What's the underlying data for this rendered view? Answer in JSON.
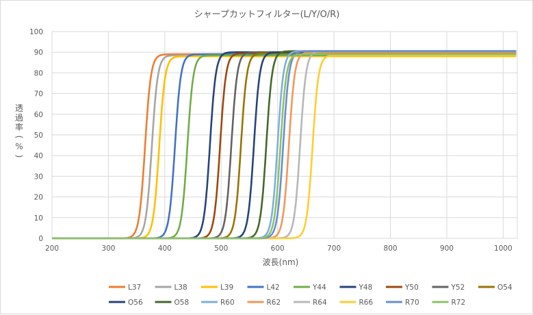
{
  "chart_data": {
    "type": "line",
    "title": "シャープカットフィルター(L/Y/O/R)",
    "xlabel": "波長(nm)",
    "ylabel": "透過率(%)",
    "xlim": [
      200,
      1025
    ],
    "ylim": [
      0,
      100
    ],
    "x_ticks": [
      200,
      300,
      400,
      500,
      600,
      700,
      800,
      900,
      1000
    ],
    "y_ticks": [
      0,
      10,
      20,
      30,
      40,
      50,
      60,
      70,
      80,
      90,
      100
    ],
    "grid": true,
    "legend_position": "bottom",
    "series": [
      {
        "name": "L37",
        "color": "#ed7d31",
        "cutoff_nm": 365,
        "plateau": 89
      },
      {
        "name": "L38",
        "color": "#a5a5a5",
        "cutoff_nm": 377,
        "plateau": 88.5
      },
      {
        "name": "L39",
        "color": "#ffc000",
        "cutoff_nm": 390,
        "plateau": 88
      },
      {
        "name": "L42",
        "color": "#4472c4",
        "cutoff_nm": 418,
        "plateau": 89
      },
      {
        "name": "Y44",
        "color": "#70ad47",
        "cutoff_nm": 440,
        "plateau": 88.5
      },
      {
        "name": "Y48",
        "color": "#264478",
        "cutoff_nm": 480,
        "plateau": 90
      },
      {
        "name": "Y50",
        "color": "#9e480e",
        "cutoff_nm": 498,
        "plateau": 89.5
      },
      {
        "name": "Y52",
        "color": "#636363",
        "cutoff_nm": 518,
        "plateau": 90
      },
      {
        "name": "O54",
        "color": "#997300",
        "cutoff_nm": 535,
        "plateau": 89.5
      },
      {
        "name": "O56",
        "color": "#264478",
        "cutoff_nm": 558,
        "plateau": 90
      },
      {
        "name": "O58",
        "color": "#43682b",
        "cutoff_nm": 580,
        "plateau": 90.5
      },
      {
        "name": "R60",
        "color": "#7cafdd",
        "cutoff_nm": 600,
        "plateau": 90.5
      },
      {
        "name": "R62",
        "color": "#f1975a",
        "cutoff_nm": 620,
        "plateau": 90
      },
      {
        "name": "R64",
        "color": "#b7b7b7",
        "cutoff_nm": 640,
        "plateau": 90.5
      },
      {
        "name": "R66",
        "color": "#ffcd33",
        "cutoff_nm": 662,
        "plateau": 88.5
      },
      {
        "name": "R70",
        "color": "#698ed0",
        "cutoff_nm": 610,
        "plateau": 90.5
      },
      {
        "name": "R72",
        "color": "#8cc168",
        "cutoff_nm": 605,
        "plateau": 89
      }
    ]
  }
}
